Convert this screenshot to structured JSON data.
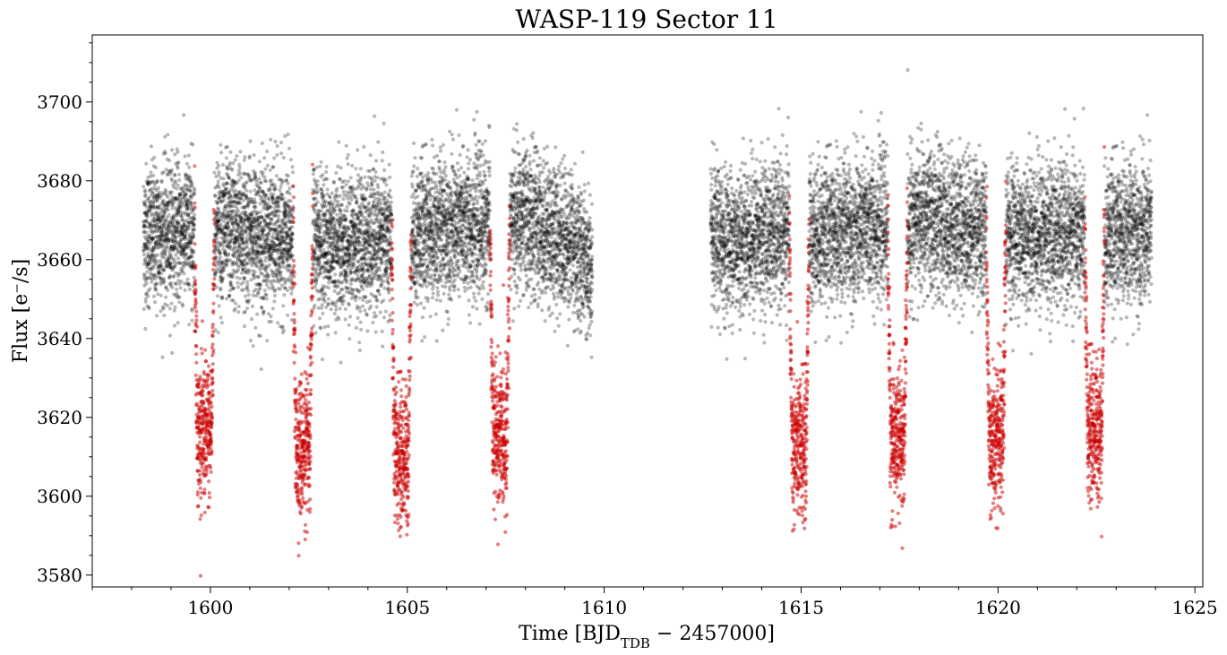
{
  "chart_data": {
    "type": "scatter",
    "title": "WASP-119 Sector 11",
    "xlabel": {
      "prefix": "Time [BJD",
      "sub": "TDB",
      "suffix": " − 2457000]"
    },
    "ylabel": "Flux [e⁻/s]",
    "xlim": [
      1597.0,
      1625.2
    ],
    "ylim": [
      3577,
      3717
    ],
    "x_ticks": [
      1600,
      1605,
      1610,
      1615,
      1620,
      1625
    ],
    "y_ticks": [
      3580,
      3600,
      3620,
      3640,
      3660,
      3680,
      3700
    ],
    "x_minor_step": 1,
    "y_minor_step": 5,
    "grid": false,
    "legend": "none",
    "colors": {
      "out_of_transit": "#000000",
      "in_transit": "#cc0000"
    },
    "series": [
      {
        "role": "out_of_transit",
        "segments": [
          {
            "x_start": 1598.3,
            "x_end": 1609.7,
            "trend": [
              [
                1598.3,
                3666
              ],
              [
                1600,
                3668
              ],
              [
                1602,
                3665
              ],
              [
                1604,
                3664
              ],
              [
                1606,
                3668
              ],
              [
                1608,
                3670
              ],
              [
                1609.2,
                3664
              ],
              [
                1609.7,
                3656
              ]
            ],
            "scatter": 9
          },
          {
            "x_start": 1612.7,
            "x_end": 1623.9,
            "trend": [
              [
                1612.7,
                3664
              ],
              [
                1614,
                3666
              ],
              [
                1616,
                3667
              ],
              [
                1618,
                3670
              ],
              [
                1620,
                3667
              ],
              [
                1622,
                3666
              ],
              [
                1623.9,
                3667
              ]
            ],
            "scatter": 9
          }
        ]
      },
      {
        "role": "in_transit",
        "transits": [
          {
            "center": 1599.85,
            "depth": 3616
          },
          {
            "center": 1602.35,
            "depth": 3612
          },
          {
            "center": 1604.85,
            "depth": 3610
          },
          {
            "center": 1607.35,
            "depth": 3615
          },
          {
            "center": 1614.95,
            "depth": 3612
          },
          {
            "center": 1617.45,
            "depth": 3614
          },
          {
            "center": 1619.95,
            "depth": 3613
          },
          {
            "center": 1622.45,
            "depth": 3617
          }
        ],
        "half_width": 0.25,
        "ingress": 0.07
      }
    ]
  }
}
